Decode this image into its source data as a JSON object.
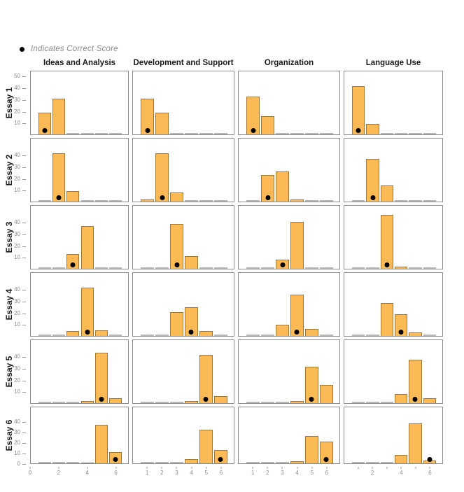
{
  "legend": {
    "label": "Indicates Correct Score"
  },
  "colors": {
    "bar_fill": "#FBBA55",
    "bar_border": "#A0782F",
    "zero_line": "#B8B8B8",
    "panel_border": "#8C8C8C",
    "tick_text": "#8A8A8A",
    "dot": "#000000"
  },
  "chart_data": {
    "type": "bar",
    "title": "",
    "legend": "Indicates Correct Score",
    "layout": "6 essay rows x 4 trait columns of small-multiple bar panels; black dot marks the correct score",
    "columns": [
      "Ideas and Analysis",
      "Development and Support",
      "Organization",
      "Language Use"
    ],
    "rows": [
      "Essay 1",
      "Essay 2",
      "Essay 3",
      "Essay 4",
      "Essay 5",
      "Essay 6"
    ],
    "x_categories": [
      1,
      2,
      3,
      4,
      5,
      6
    ],
    "y_axis": {
      "ylim": [
        0,
        55
      ],
      "rows": [
        [
          10,
          20,
          30,
          40,
          50
        ],
        [
          10,
          20,
          30,
          40
        ],
        [
          10,
          20,
          30,
          40
        ],
        [
          10,
          20,
          30,
          40
        ],
        [
          10,
          20,
          30,
          40
        ],
        [
          0,
          10,
          20,
          30,
          40
        ]
      ]
    },
    "x_axis": {
      "domain": [
        0,
        6.9
      ],
      "columns": [
        {
          "labels": [
            0,
            2,
            4,
            6
          ],
          "marks": [
            0,
            2,
            4,
            6
          ]
        },
        {
          "labels": [
            1,
            2,
            3,
            4,
            5,
            6
          ],
          "marks": [
            1,
            2,
            3,
            4,
            5,
            6
          ]
        },
        {
          "labels": [
            1,
            2,
            3,
            4,
            5,
            6
          ],
          "marks": [
            1,
            2,
            3,
            4,
            5,
            6
          ]
        },
        {
          "labels": [
            2,
            4,
            6
          ],
          "marks": [
            1,
            2,
            3,
            4,
            5,
            6
          ]
        }
      ]
    },
    "panels": [
      {
        "essay": "Essay 1",
        "trait": "Ideas and Analysis",
        "values": [
          19,
          31,
          0,
          0,
          0,
          0
        ],
        "correct_score": 1
      },
      {
        "essay": "Essay 1",
        "trait": "Development and Support",
        "values": [
          31,
          19,
          0,
          0,
          0,
          0
        ],
        "correct_score": 1
      },
      {
        "essay": "Essay 1",
        "trait": "Organization",
        "values": [
          33,
          16,
          0,
          0,
          0,
          0
        ],
        "correct_score": 1
      },
      {
        "essay": "Essay 1",
        "trait": "Language Use",
        "values": [
          42,
          9,
          0,
          0,
          0,
          0
        ],
        "correct_score": 1
      },
      {
        "essay": "Essay 2",
        "trait": "Ideas and Analysis",
        "values": [
          0,
          42,
          9,
          0,
          0,
          0
        ],
        "correct_score": 2
      },
      {
        "essay": "Essay 2",
        "trait": "Development and Support",
        "values": [
          2,
          42,
          8,
          0,
          0,
          0
        ],
        "correct_score": 2
      },
      {
        "essay": "Essay 2",
        "trait": "Organization",
        "values": [
          0,
          23,
          26,
          2,
          0,
          0
        ],
        "correct_score": 2
      },
      {
        "essay": "Essay 2",
        "trait": "Language Use",
        "values": [
          0,
          37,
          14,
          0,
          0,
          0
        ],
        "correct_score": 2
      },
      {
        "essay": "Essay 3",
        "trait": "Ideas and Analysis",
        "values": [
          0,
          0,
          13,
          37,
          0,
          0
        ],
        "correct_score": 3
      },
      {
        "essay": "Essay 3",
        "trait": "Development and Support",
        "values": [
          0,
          0,
          39,
          11,
          0,
          0
        ],
        "correct_score": 3
      },
      {
        "essay": "Essay 3",
        "trait": "Organization",
        "values": [
          0,
          0,
          8,
          41,
          0,
          0
        ],
        "correct_score": 3
      },
      {
        "essay": "Essay 3",
        "trait": "Language Use",
        "values": [
          0,
          0,
          47,
          2,
          0,
          0
        ],
        "correct_score": 3
      },
      {
        "essay": "Essay 4",
        "trait": "Ideas and Analysis",
        "values": [
          0,
          0,
          4,
          42,
          5,
          0
        ],
        "correct_score": 4
      },
      {
        "essay": "Essay 4",
        "trait": "Development and Support",
        "values": [
          0,
          0,
          21,
          25,
          4,
          0
        ],
        "correct_score": 4
      },
      {
        "essay": "Essay 4",
        "trait": "Organization",
        "values": [
          0,
          0,
          10,
          36,
          6,
          0
        ],
        "correct_score": 4
      },
      {
        "essay": "Essay 4",
        "trait": "Language Use",
        "values": [
          0,
          0,
          29,
          19,
          3,
          0
        ],
        "correct_score": 4
      },
      {
        "essay": "Essay 5",
        "trait": "Ideas and Analysis",
        "values": [
          0,
          0,
          0,
          2,
          44,
          4
        ],
        "correct_score": 5
      },
      {
        "essay": "Essay 5",
        "trait": "Development and Support",
        "values": [
          0,
          0,
          0,
          2,
          42,
          6
        ],
        "correct_score": 5
      },
      {
        "essay": "Essay 5",
        "trait": "Organization",
        "values": [
          0,
          0,
          0,
          2,
          32,
          16
        ],
        "correct_score": 5
      },
      {
        "essay": "Essay 5",
        "trait": "Language Use",
        "values": [
          0,
          0,
          0,
          8,
          38,
          4
        ],
        "correct_score": 5
      },
      {
        "essay": "Essay 6",
        "trait": "Ideas and Analysis",
        "values": [
          0,
          0,
          0,
          1,
          38,
          11
        ],
        "correct_score": 6
      },
      {
        "essay": "Essay 6",
        "trait": "Development and Support",
        "values": [
          0,
          0,
          0,
          4,
          33,
          13
        ],
        "correct_score": 6
      },
      {
        "essay": "Essay 6",
        "trait": "Organization",
        "values": [
          0,
          0,
          0,
          2,
          27,
          21
        ],
        "correct_score": 6
      },
      {
        "essay": "Essay 6",
        "trait": "Language Use",
        "values": [
          0,
          0,
          0,
          8,
          39,
          3
        ],
        "correct_score": 6
      }
    ]
  }
}
